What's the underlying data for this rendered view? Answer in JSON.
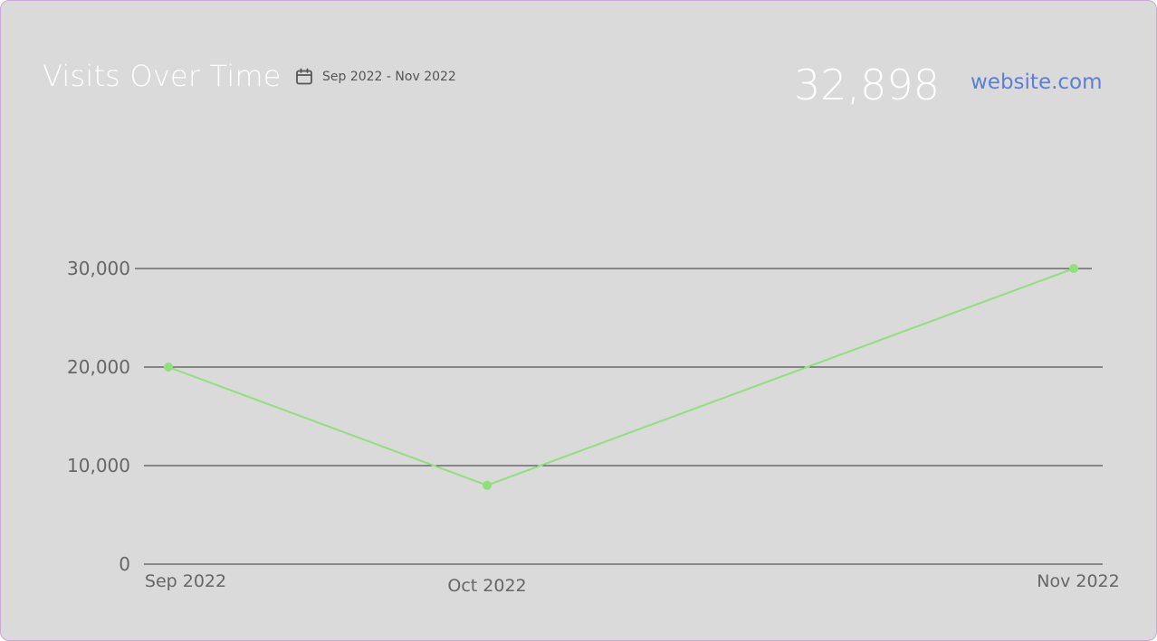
{
  "header": {
    "title": "Visits Over Time",
    "date_range": "Sep 2022 - Nov 2022",
    "total": "32,898",
    "site": "website.com"
  },
  "icons": {
    "date": "calendar-icon"
  },
  "colors": {
    "background": "#dadada",
    "line": "#8ee07a",
    "point": "#8ee07a",
    "grid": "#333333",
    "link": "#5b7fd6",
    "title": "#ffffff"
  },
  "chart_data": {
    "type": "line",
    "title": "Visits Over Time",
    "xlabel": "",
    "ylabel": "",
    "categories": [
      "Sep 2022",
      "Oct 2022",
      "Nov 2022"
    ],
    "series": [
      {
        "values": [
          20000,
          8000,
          30000
        ]
      }
    ],
    "y_ticks": [
      0,
      10000,
      20000,
      30000
    ],
    "y_tick_labels": [
      "0",
      "10,000",
      "20,000",
      "30,000"
    ],
    "ylim": [
      0,
      30000
    ],
    "grid": true,
    "legend": "none"
  }
}
